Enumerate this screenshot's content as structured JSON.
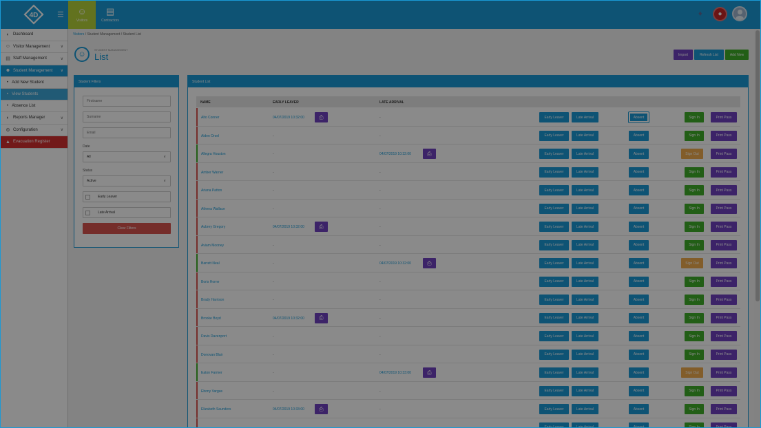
{
  "topbar": {
    "logo_text": "4D",
    "nav": [
      {
        "label": "Visitors",
        "icon": "person-icon"
      },
      {
        "label": "Contractors",
        "icon": "clipboard-icon"
      }
    ],
    "colors": {
      "brand": "#1a9ad6",
      "visitors_tab": "#b5d33a",
      "alert": "#c62828"
    }
  },
  "sidebar": {
    "items": [
      {
        "label": "Dashboard",
        "icon": "dashboard-icon"
      },
      {
        "label": "Visitor Management",
        "icon": "person-icon"
      },
      {
        "label": "Staff Management",
        "icon": "id-card-icon"
      },
      {
        "label": "Student Management",
        "icon": "student-icon"
      },
      {
        "label": "Add New Student"
      },
      {
        "label": "View Students"
      },
      {
        "label": "Absence List"
      },
      {
        "label": "Reports Manager",
        "icon": "chart-icon"
      },
      {
        "label": "Configuration",
        "icon": "gear-icon"
      },
      {
        "label": "Evacuation Register",
        "icon": "fire-icon"
      }
    ]
  },
  "breadcrumb": {
    "items": [
      "Visitors",
      "Student Management",
      "Student List"
    ],
    "sep": "/"
  },
  "header": {
    "subtitle": "STUDENT MANAGEMENT",
    "title": "List"
  },
  "actions": {
    "import": "Import",
    "refresh": "Refresh List",
    "add_new": "Add New"
  },
  "filters": {
    "title": "Student Filters",
    "firstname_placeholder": "Firstname",
    "surname_placeholder": "Surname",
    "email_placeholder": "Email",
    "date_label": "Date",
    "date_value": "All",
    "status_label": "Status",
    "status_value": "Active",
    "early_leaver": "Early Leaver",
    "late_arrival": "Late Arrival",
    "clear_button": "Clear Filters"
  },
  "student_list": {
    "title": "Student List",
    "columns": {
      "name": "NAME",
      "early_leaver": "EARLY LEAVER",
      "late_arrival": "LATE ARRIVAL"
    },
    "button_labels": {
      "early_leaver": "Early Leaver",
      "late_arrival": "Late Arrival",
      "absent": "Absent",
      "sign_in": "Sign In",
      "sign_out": "Sign Out",
      "print_pass": "Print Pass"
    },
    "status_colors": {
      "out": "#d9534f",
      "in": "#3fae29"
    },
    "rows": [
      {
        "name": "Alto Conner",
        "early": "04/07/2019 10:32:00",
        "late": "-",
        "status": "out",
        "action": "Sign In"
      },
      {
        "name": "Aiden Orsel",
        "early": "-",
        "late": "-",
        "status": "out",
        "action": "Sign In"
      },
      {
        "name": "Allegra Houston",
        "early": "-",
        "late": "04/07/2019 10:32:00",
        "status": "in",
        "action": "Sign Out"
      },
      {
        "name": "Amber Warner",
        "early": "-",
        "late": "-",
        "status": "out",
        "action": "Sign In"
      },
      {
        "name": "Ariana Patton",
        "early": "-",
        "late": "-",
        "status": "out",
        "action": "Sign In"
      },
      {
        "name": "Athena Wallace",
        "early": "-",
        "late": "-",
        "status": "out",
        "action": "Sign In"
      },
      {
        "name": "Aubrey Gregory",
        "early": "04/07/2019 10:32:00",
        "late": "-",
        "status": "out",
        "action": "Sign In"
      },
      {
        "name": "Aviam Mooney",
        "early": "-",
        "late": "-",
        "status": "out",
        "action": "Sign In"
      },
      {
        "name": "Barrett Neal",
        "early": "-",
        "late": "04/07/2019 10:32:00",
        "status": "in",
        "action": "Sign Out"
      },
      {
        "name": "Boris Horne",
        "early": "-",
        "late": "-",
        "status": "out",
        "action": "Sign In"
      },
      {
        "name": "Brady Harrison",
        "early": "-",
        "late": "-",
        "status": "out",
        "action": "Sign In"
      },
      {
        "name": "Brooke Boyd",
        "early": "04/07/2019 10:32:00",
        "late": "-",
        "status": "out",
        "action": "Sign In"
      },
      {
        "name": "Davis Davenport",
        "early": "-",
        "late": "-",
        "status": "out",
        "action": "Sign In"
      },
      {
        "name": "Donovan Blair",
        "early": "-",
        "late": "-",
        "status": "out",
        "action": "Sign In"
      },
      {
        "name": "Eaton Farmer",
        "early": "-",
        "late": "04/07/2019 10:33:00",
        "status": "in",
        "action": "Sign Out"
      },
      {
        "name": "Ebony Vargas",
        "early": "-",
        "late": "-",
        "status": "out",
        "action": "Sign In"
      },
      {
        "name": "Elizabeth Saunders",
        "early": "04/07/2019 10:33:00",
        "late": "-",
        "status": "out",
        "action": "Sign In"
      },
      {
        "name": "",
        "early": "",
        "late": "",
        "status": "out",
        "action": "Sign In"
      }
    ]
  }
}
